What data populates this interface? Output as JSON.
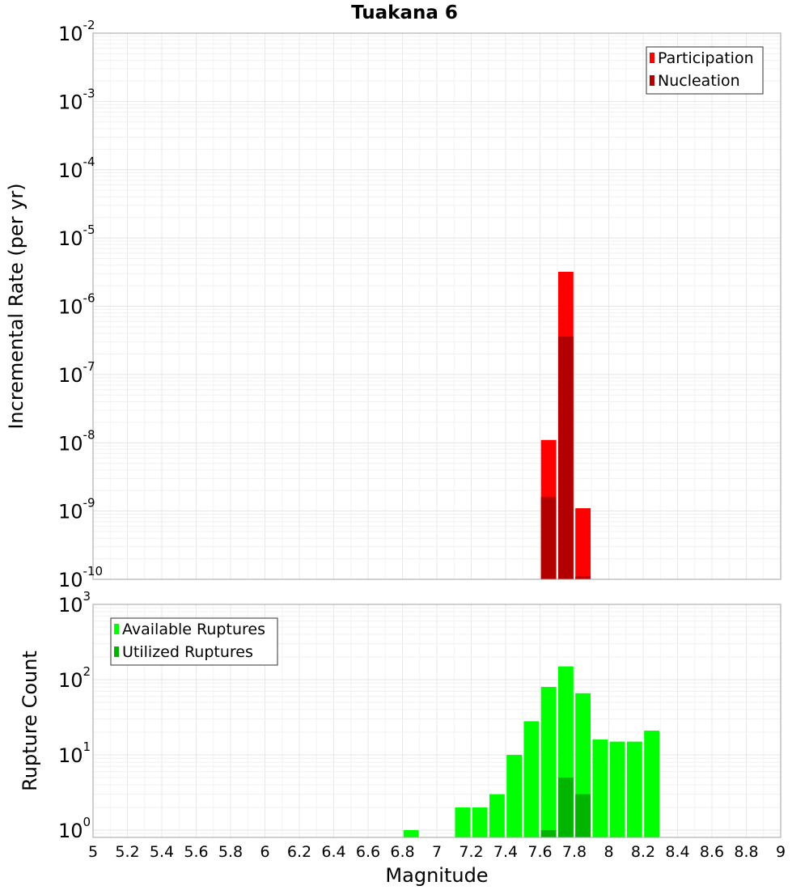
{
  "chart_data": {
    "type": "bar",
    "title": "Tuakana 6",
    "xlabel": "Magnitude",
    "xlim": [
      5,
      9
    ],
    "bin_width": 0.1,
    "x_ticks": [
      "5",
      "5.2",
      "5.4",
      "5.6",
      "5.8",
      "6",
      "6.2",
      "6.4",
      "6.6",
      "6.8",
      "7",
      "7.2",
      "7.4",
      "7.6",
      "7.8",
      "8",
      "8.2",
      "8.4",
      "8.6",
      "8.8",
      "9"
    ],
    "panels": [
      {
        "ylabel": "Incremental Rate (per yr)",
        "yscale": "log",
        "ylim": [
          1e-10,
          0.01
        ],
        "y_ticks": [
          {
            "base": "10",
            "exp": "-2",
            "value": 0.01
          },
          {
            "base": "10",
            "exp": "-3",
            "value": 0.001
          },
          {
            "base": "10",
            "exp": "-4",
            "value": 0.0001
          },
          {
            "base": "10",
            "exp": "-5",
            "value": 1e-05
          },
          {
            "base": "10",
            "exp": "-6",
            "value": 1e-06
          },
          {
            "base": "10",
            "exp": "-7",
            "value": 1e-07
          },
          {
            "base": "10",
            "exp": "-8",
            "value": 1e-08
          },
          {
            "base": "10",
            "exp": "-9",
            "value": 1e-09
          },
          {
            "base": "10",
            "exp": "-10",
            "value": 1e-10
          }
        ],
        "legend_position": "top-right",
        "grid": true,
        "series": [
          {
            "name": "Participation",
            "color": "#ff0000",
            "points": [
              {
                "x": 7.65,
                "y": 1.1e-08
              },
              {
                "x": 7.75,
                "y": 3.2e-06
              },
              {
                "x": 7.85,
                "y": 1.1e-09
              }
            ]
          },
          {
            "name": "Nucleation",
            "color": "#b20000",
            "points": [
              {
                "x": 7.65,
                "y": 1.6e-09
              },
              {
                "x": 7.75,
                "y": 3.6e-07
              },
              {
                "x": 7.85,
                "y": 1.1e-10
              }
            ]
          }
        ]
      },
      {
        "ylabel": "Rupture Count",
        "yscale": "log",
        "ylim": [
          0.8,
          1000
        ],
        "y_ticks": [
          {
            "base": "10",
            "exp": "3",
            "value": 1000
          },
          {
            "base": "10",
            "exp": "2",
            "value": 100
          },
          {
            "base": "10",
            "exp": "1",
            "value": 10
          },
          {
            "base": "10",
            "exp": "0",
            "value": 1
          }
        ],
        "legend_position": "top-left",
        "grid": true,
        "series": [
          {
            "name": "Available Ruptures",
            "color": "#00ff00",
            "points": [
              {
                "x": 6.85,
                "y": 1
              },
              {
                "x": 7.15,
                "y": 2
              },
              {
                "x": 7.25,
                "y": 2
              },
              {
                "x": 7.35,
                "y": 3
              },
              {
                "x": 7.45,
                "y": 10
              },
              {
                "x": 7.55,
                "y": 28
              },
              {
                "x": 7.65,
                "y": 80
              },
              {
                "x": 7.75,
                "y": 150
              },
              {
                "x": 7.85,
                "y": 66
              },
              {
                "x": 7.95,
                "y": 16
              },
              {
                "x": 8.05,
                "y": 15
              },
              {
                "x": 8.15,
                "y": 15
              },
              {
                "x": 8.25,
                "y": 21
              }
            ]
          },
          {
            "name": "Utilized Ruptures",
            "color": "#00b400",
            "points": [
              {
                "x": 7.65,
                "y": 1
              },
              {
                "x": 7.75,
                "y": 5
              },
              {
                "x": 7.85,
                "y": 3
              }
            ]
          }
        ]
      }
    ]
  }
}
